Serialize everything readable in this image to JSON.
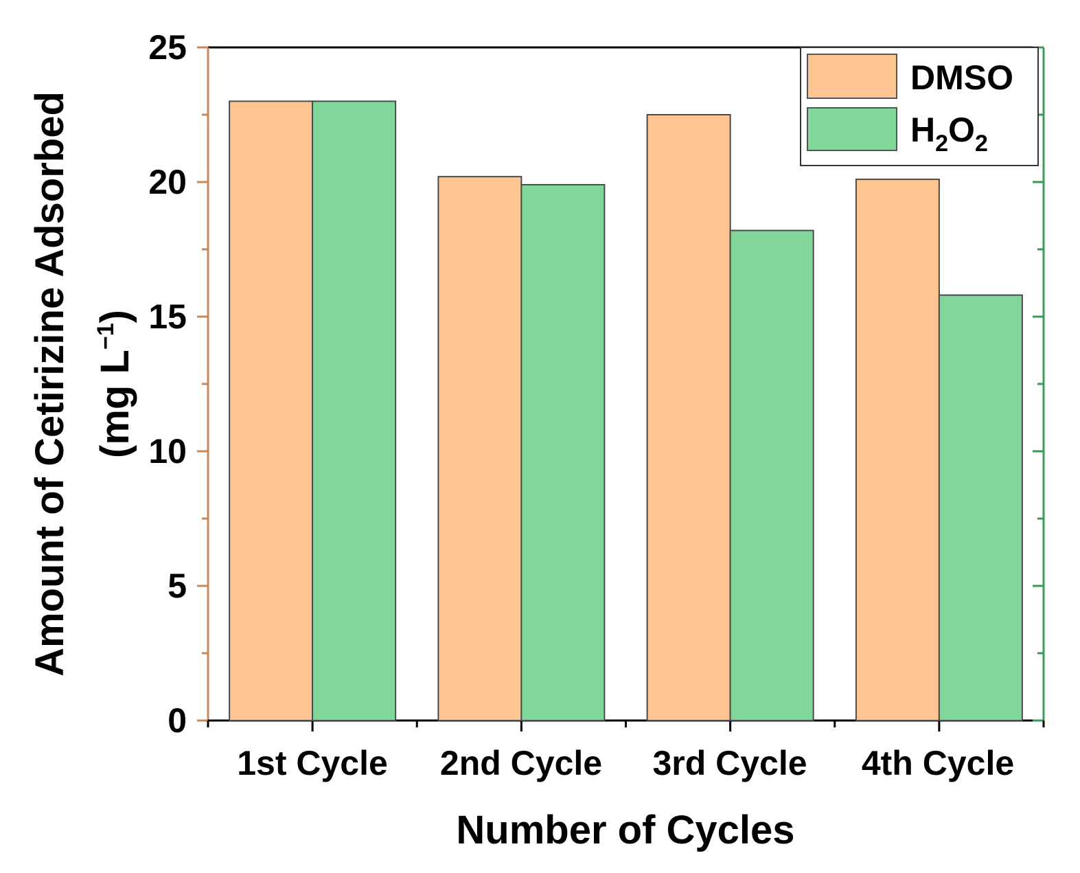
{
  "chart_data": {
    "type": "bar",
    "categories": [
      "1st Cycle",
      "2nd Cycle",
      "3rd Cycle",
      "4th Cycle"
    ],
    "series": [
      {
        "name": "DMSO",
        "color": "#fec592",
        "values": [
          23.0,
          20.2,
          22.5,
          20.1
        ]
      },
      {
        "name": "H2O2",
        "color": "#81d79a",
        "values": [
          23.0,
          19.9,
          18.2,
          15.8
        ]
      }
    ],
    "xlabel": "Number of Cycles",
    "ylabel_line1": "Amount of Cetirizine Adsorbed",
    "ylabel_line2": "(mg L",
    "ylabel_sup": "−1",
    "ylabel_close": ")",
    "ylim": [
      0,
      25
    ],
    "yticks": [
      0,
      5,
      10,
      15,
      20,
      25
    ],
    "legend": {
      "position": "top-right",
      "dmso_label": "DMSO",
      "h2o2_main": "H",
      "h2o2_sub1": "2",
      "h2o2_o": "O",
      "h2o2_sub2": "2"
    },
    "left_axis_color": "#c8875a",
    "right_axis_color": "#3a9a5a"
  }
}
